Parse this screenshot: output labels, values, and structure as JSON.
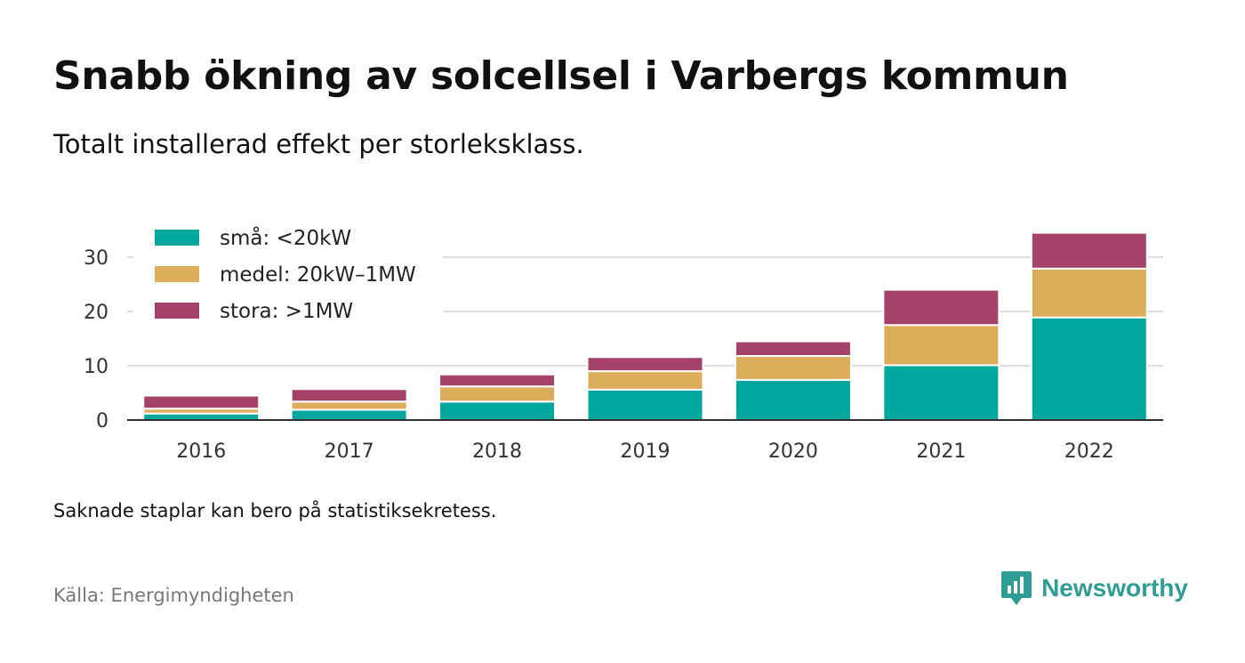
{
  "title": "Snabb ökning av solcellsel i Varbergs kommun",
  "subtitle": "Totalt installerad effekt per storleksklass.",
  "note": "Saknade staplar kan bero på statistiksekretess.",
  "source": "Källa: Energimyndigheten",
  "brand": {
    "name": "Newsworthy",
    "icon": "newsworthy-logo-icon",
    "color": "#2f9d96"
  },
  "chart_data": {
    "type": "bar",
    "stacked": true,
    "categories": [
      "2016",
      "2017",
      "2018",
      "2019",
      "2020",
      "2021",
      "2022"
    ],
    "series": [
      {
        "name": "små: <20kW",
        "color": "#00a79d",
        "values": [
          1.2,
          1.9,
          3.4,
          5.6,
          7.4,
          10.1,
          18.9
        ]
      },
      {
        "name": "medel: 20kW–1MW",
        "color": "#dcae5c",
        "values": [
          0.9,
          1.5,
          2.8,
          3.4,
          4.4,
          7.4,
          9.0
        ]
      },
      {
        "name": "stora: >1MW",
        "color": "#a4426a",
        "values": [
          2.4,
          2.3,
          2.2,
          2.6,
          2.7,
          6.5,
          6.6
        ]
      }
    ],
    "ylim": [
      0,
      35
    ],
    "yticks": [
      0,
      10,
      20,
      30
    ],
    "grid": true,
    "legend": "top-left"
  }
}
